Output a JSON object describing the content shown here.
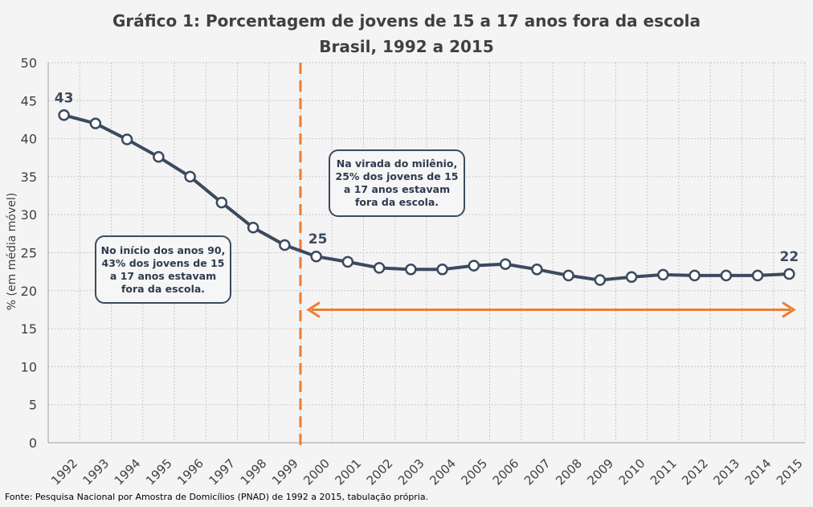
{
  "chart_data": {
    "type": "line",
    "title": "Gráfico 1: Porcentagem de jovens de 15 a 17 anos fora da escola",
    "subtitle": "Brasil, 1992 a 2015",
    "ylabel": "% (em média móvel)",
    "xlabel": "",
    "ylim": [
      0,
      50
    ],
    "yticks": [
      0,
      5,
      10,
      15,
      20,
      25,
      30,
      35,
      40,
      45,
      50
    ],
    "grid": true,
    "categories": [
      "1992",
      "1993",
      "1994",
      "1995",
      "1996",
      "1997",
      "1998",
      "1999",
      "2000",
      "2001",
      "2002",
      "2003",
      "2004",
      "2005",
      "2006",
      "2007",
      "2008",
      "2009",
      "2010",
      "2011",
      "2012",
      "2013",
      "2014",
      "2015"
    ],
    "values": [
      43.1,
      42.0,
      39.9,
      37.6,
      35.0,
      31.6,
      28.3,
      26.0,
      24.5,
      23.8,
      23.0,
      22.8,
      22.8,
      23.3,
      23.5,
      22.8,
      22.0,
      21.4,
      21.8,
      22.1,
      22.0,
      22.0,
      22.0,
      22.2
    ],
    "data_labels": [
      {
        "category": "1992",
        "text": "43"
      },
      {
        "category": "2000",
        "text": "25"
      },
      {
        "category": "2015",
        "text": "22"
      }
    ],
    "annotations": [
      {
        "text": "No início dos anos 90, 43% dos jovens de 15 a 17 anos estavam fora da escola."
      },
      {
        "text": "Na virada do milênio, 25% dos jovens de 15 a 17 anos estavam fora da escola."
      }
    ],
    "colors": {
      "line": "#3b4a60",
      "marker_fill": "#ffffff",
      "highlight": "#ed7d31",
      "background": "#f4f4f4"
    }
  },
  "source": "Fonte: Pesquisa Nacional por Amostra de Domicílios (PNAD) de 1992 a 2015,  tabulação própria."
}
